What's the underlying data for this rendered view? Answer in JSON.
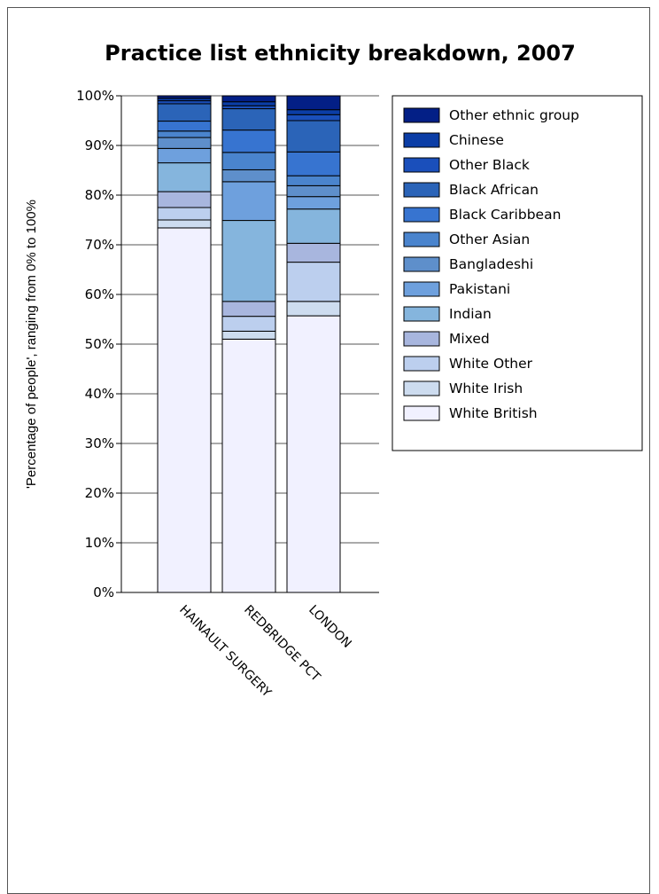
{
  "chart_data": {
    "type": "bar",
    "stacked": true,
    "title": "Practice list ethnicity breakdown, 2007",
    "xlabel": "",
    "ylabel": "'Percentage of people', ranging from 0% to 100%",
    "ylim": [
      0,
      100
    ],
    "y_ticks": [
      "0%",
      "10%",
      "20%",
      "30%",
      "40%",
      "50%",
      "60%",
      "70%",
      "80%",
      "90%",
      "100%"
    ],
    "grid": true,
    "legend_position": "right",
    "categories": [
      "HAINAULT SURGERY",
      "REDBRIDGE PCT",
      "LONDON"
    ],
    "series": [
      {
        "name": "White British",
        "color": "#f1f1ff",
        "values": [
          73.4,
          51.0,
          55.7
        ]
      },
      {
        "name": "White Irish",
        "color": "#cddcef",
        "values": [
          1.6,
          1.6,
          2.9
        ]
      },
      {
        "name": "White Other",
        "color": "#bccfee",
        "values": [
          2.5,
          3.0,
          7.9
        ]
      },
      {
        "name": "Mixed",
        "color": "#a8b6de",
        "values": [
          3.2,
          3.0,
          3.8
        ]
      },
      {
        "name": "Indian",
        "color": "#85b5dd",
        "values": [
          5.8,
          16.3,
          6.9
        ]
      },
      {
        "name": "Pakistani",
        "color": "#6ea0dd",
        "values": [
          2.9,
          7.8,
          2.5
        ]
      },
      {
        "name": "Bangladeshi",
        "color": "#5e8fcb",
        "values": [
          2.2,
          2.4,
          2.2
        ]
      },
      {
        "name": "Other Asian",
        "color": "#4a84cd",
        "values": [
          1.3,
          3.5,
          2.0
        ]
      },
      {
        "name": "Black Caribbean",
        "color": "#3774d0",
        "values": [
          2.0,
          4.5,
          4.8
        ]
      },
      {
        "name": "Black African",
        "color": "#2b64b8",
        "values": [
          3.5,
          4.3,
          6.3
        ]
      },
      {
        "name": "Other Black",
        "color": "#1a4fbb",
        "values": [
          0.6,
          0.6,
          1.2
        ]
      },
      {
        "name": "Chinese",
        "color": "#0b3da6",
        "values": [
          0.5,
          0.8,
          1.0
        ]
      },
      {
        "name": "Other ethnic group",
        "color": "#031f86",
        "values": [
          0.5,
          1.2,
          2.8
        ]
      }
    ]
  }
}
